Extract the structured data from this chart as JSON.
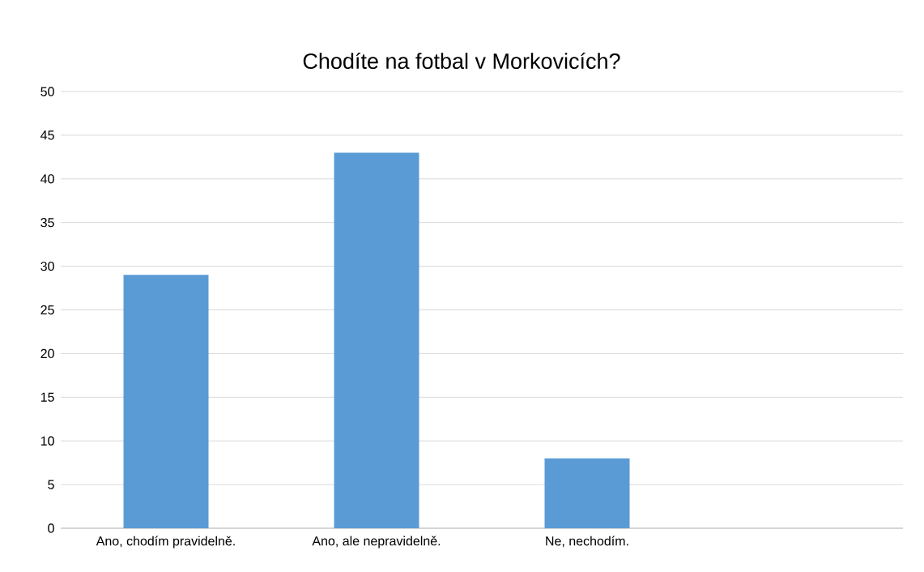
{
  "chart_data": {
    "type": "bar",
    "title": "Chodíte na fotbal v Morkovicích?",
    "categories": [
      "Ano, chodím pravidelně.",
      "Ano, ale nepravidelně.",
      "Ne, nechodím.",
      null
    ],
    "values": [
      29,
      43,
      8,
      null
    ],
    "color": "#5b9bd5",
    "ylim": [
      0,
      50
    ],
    "yticks": [
      0,
      5,
      10,
      15,
      20,
      25,
      30,
      35,
      40,
      45,
      50
    ],
    "grid": "y"
  }
}
